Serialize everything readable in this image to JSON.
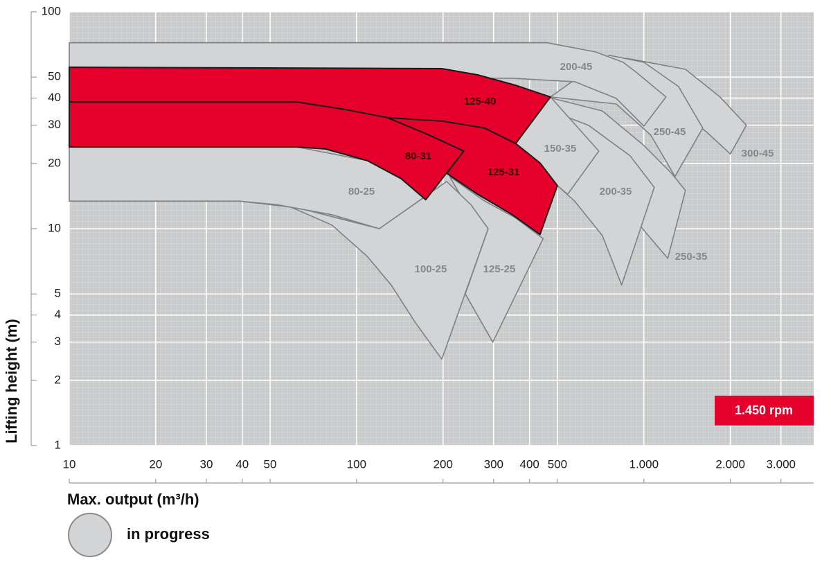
{
  "chart_data": {
    "type": "region",
    "xlabel": "Max. output (m³/h)",
    "ylabel": "Lifting height (m)",
    "xscale": "log",
    "yscale": "log",
    "xlim": [
      10,
      3900
    ],
    "ylim": [
      1,
      100
    ],
    "xticks": [
      10,
      20,
      30,
      40,
      50,
      100,
      200,
      300,
      400,
      500,
      {
        "value": 1000,
        "label": "1.000"
      },
      {
        "value": 2000,
        "label": "2.000"
      },
      {
        "value": 3000,
        "label": "3.000"
      }
    ],
    "yticks": [
      1,
      2,
      3,
      4,
      5,
      10,
      20,
      30,
      40,
      50,
      100
    ],
    "grid": true,
    "annotation": {
      "text": "1.450 rpm",
      "color": "#e4002b"
    },
    "legend": {
      "label": "in progress",
      "color": "#d3d4d6"
    },
    "series": [
      {
        "name": "300-45",
        "color": "#d3d4d6",
        "edgecolor": "#7f8083",
        "x": [
          871,
          1395,
          1841,
          2274,
          2000,
          1648,
          1320,
          1000
        ],
        "y": [
          61,
          54.3,
          40.5,
          30,
          22.1,
          28,
          34.9,
          50.5
        ]
      },
      {
        "name": "250-45",
        "color": "#d3d4d6",
        "edgecolor": "#7f8083",
        "x": [
          758,
          1000,
          1320,
          1603,
          1283,
          1057,
          801,
          473
        ],
        "y": [
          63,
          58.5,
          45.2,
          29.1,
          17.4,
          27,
          37.6,
          40.5
        ]
      },
      {
        "name": "200-45",
        "color": "#d3d4d6",
        "edgecolor": "#7f8083",
        "x": [
          10,
          460,
          678,
          847,
          946,
          1194,
          1000,
          801,
          574,
          348,
          10
        ],
        "y": [
          72,
          72,
          65.3,
          58.5,
          52.3,
          40.5,
          29.7,
          39.9,
          47.6,
          49.4,
          49.4
        ]
      },
      {
        "name": "250-35",
        "color": "#d3d4d6",
        "edgecolor": "#7f8083",
        "x": [
          460,
          717,
          1000,
          1248,
          1395,
          1211,
          989,
          758,
          486
        ],
        "y": [
          40.5,
          34.9,
          24.2,
          18,
          15,
          7.3,
          10,
          16.5,
          29.1
        ]
      },
      {
        "name": "200-35",
        "color": "#d3d4d6",
        "edgecolor": "#7f8083",
        "x": [
          412,
          641,
          895,
          1087,
          837,
          717,
          574,
          500
        ],
        "y": [
          37.6,
          30,
          21.7,
          15.5,
          5.5,
          9.3,
          13.4,
          15.8
        ]
      },
      {
        "name": "150-35",
        "color": "#d3d4d6",
        "edgecolor": "#7f8083",
        "x": [
          473,
          697,
          543,
          500,
          358
        ],
        "y": [
          40.5,
          22.8,
          14.4,
          15.8,
          24.7
        ]
      },
      {
        "name": "125-25",
        "color": "#d3d4d6",
        "edgecolor": "#7f8083",
        "x": [
          211,
          279,
          358,
          446,
          298,
          239,
          287,
          236
        ],
        "y": [
          17.4,
          13.4,
          11.2,
          9,
          3,
          5,
          10,
          13.4
        ]
      },
      {
        "name": "100-25",
        "color": "#d3d4d6",
        "edgecolor": "#7f8083",
        "x": [
          39,
          62,
          120,
          171,
          206,
          250,
          287,
          198,
          160,
          132,
          109,
          82,
          59
        ],
        "y": [
          13.4,
          12.5,
          10,
          13.9,
          16.5,
          12.9,
          10,
          2.5,
          3.7,
          5.5,
          7.45,
          10.4,
          12.6
        ]
      },
      {
        "name": "80-25",
        "color": "#d3d4d6",
        "edgecolor": "#7f8083",
        "x": [
          10,
          62,
          109,
          143,
          171,
          120,
          82,
          53,
          39,
          10
        ],
        "y": [
          23.8,
          23.8,
          20.6,
          17,
          13.9,
          10,
          11.6,
          12.9,
          13.4,
          13.4
        ]
      },
      {
        "name": "125-31",
        "color": "#e4002b",
        "edgecolor": "#1a1a1a",
        "x": [
          128,
          200,
          279,
          358,
          435,
          500,
          435,
          348,
          264,
          206,
          236,
          179
        ],
        "y": [
          32.5,
          31.3,
          29.1,
          24.7,
          20.1,
          15.8,
          9.4,
          11.6,
          14.4,
          18,
          22.8,
          27
        ]
      },
      {
        "name": "80-31",
        "color": "#e4002b",
        "edgecolor": "#1a1a1a",
        "x": [
          10,
          62,
          92,
          128,
          179,
          236,
          174,
          143,
          109,
          78,
          62,
          10
        ],
        "y": [
          38.4,
          38.4,
          35.4,
          32.5,
          27,
          22.8,
          13.6,
          17,
          20.6,
          23.3,
          23.8,
          23.8
        ]
      },
      {
        "name": "125-40",
        "color": "#e4002b",
        "edgecolor": "#1a1a1a",
        "x": [
          10,
          198,
          264,
          358,
          473,
          358,
          279,
          200,
          128,
          92,
          62,
          10
        ],
        "y": [
          55.5,
          54.7,
          51.2,
          45.8,
          40.5,
          24.7,
          29.1,
          31.3,
          32.5,
          35.4,
          38.4,
          38.4
        ]
      }
    ]
  }
}
